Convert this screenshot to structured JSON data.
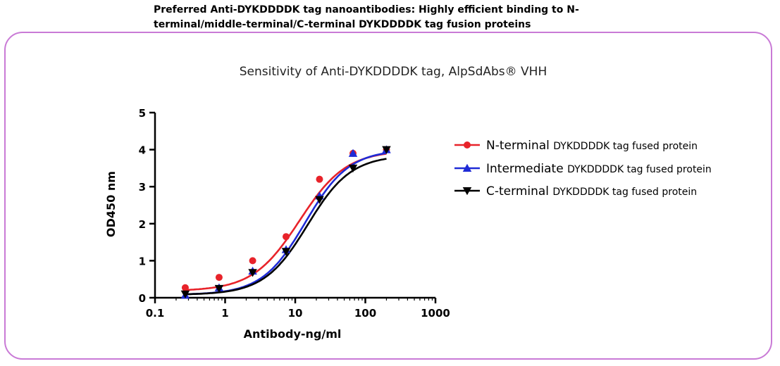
{
  "header": {
    "line1": "Preferred Anti-DYKDDDDK tag nanoantibodies: Highly efficient binding to N-",
    "line2": "terminal/middle-terminal/C-terminal DYKDDDDK tag fusion proteins"
  },
  "chart_data": {
    "type": "scatter",
    "title": "Sensitivity of Anti-DYKDDDDK tag, AlpSdAbs® VHH",
    "xlabel": "Antibody-ng/ml",
    "ylabel": "OD450 nm",
    "xscale": "log",
    "xlim": [
      0.1,
      1000
    ],
    "ylim": [
      0,
      5
    ],
    "xticks": [
      "0.1",
      "1",
      "10",
      "100",
      "1000"
    ],
    "yticks": [
      "0",
      "1",
      "2",
      "3",
      "4",
      "5"
    ],
    "grid": false,
    "legend_position": "right",
    "series": [
      {
        "name": "N-terminal",
        "name_suffix": "DYKDDDDK tag fused protein",
        "color": "#e8232a",
        "marker": "circle",
        "x": [
          0.27,
          0.82,
          2.47,
          7.4,
          22.2,
          66.7,
          200
        ],
        "y": [
          0.27,
          0.55,
          1.0,
          1.65,
          3.2,
          3.9,
          4.0
        ],
        "fit": {
          "bottom": 0.18,
          "top": 3.98,
          "ec50": 11.5,
          "hill": 1.3
        }
      },
      {
        "name": "Intermediate",
        "name_suffix": "DYKDDDDK tag fused protein",
        "color": "#1f2bd6",
        "marker": "triangle-up",
        "x": [
          0.27,
          0.82,
          2.47,
          7.4,
          22.2,
          66.7,
          200
        ],
        "y": [
          0.07,
          0.27,
          0.72,
          1.3,
          2.75,
          3.9,
          4.0
        ],
        "fit": {
          "bottom": 0.08,
          "top": 4.0,
          "ec50": 14.0,
          "hill": 1.4
        }
      },
      {
        "name": "C-terminal",
        "name_suffix": "DYKDDDDK tag fused protein",
        "color": "#000000",
        "marker": "triangle-down",
        "x": [
          0.27,
          0.82,
          2.47,
          7.4,
          22.2,
          66.7,
          200
        ],
        "y": [
          0.1,
          0.25,
          0.68,
          1.25,
          2.65,
          3.5,
          4.0
        ],
        "fit": {
          "bottom": 0.08,
          "top": 3.85,
          "ec50": 15.0,
          "hill": 1.4
        }
      }
    ]
  }
}
